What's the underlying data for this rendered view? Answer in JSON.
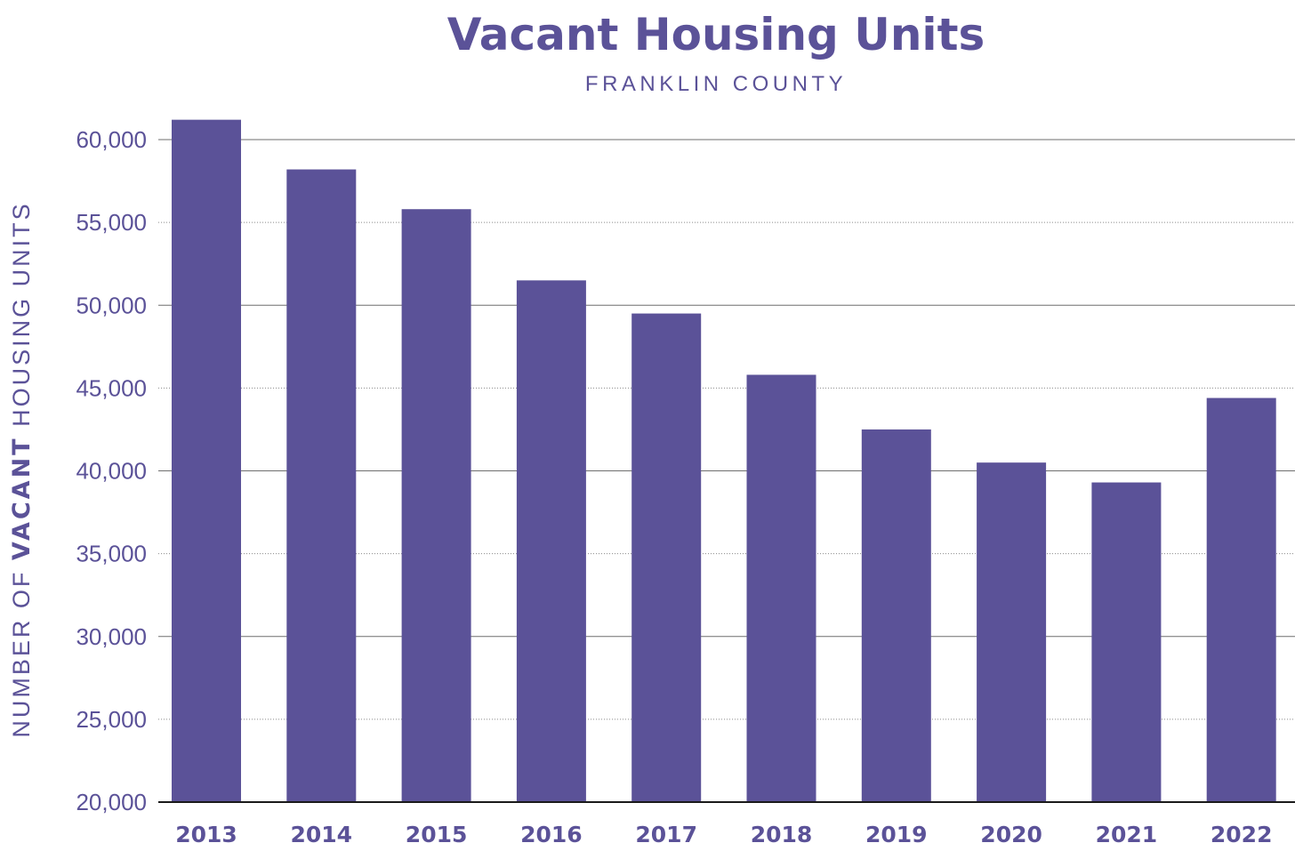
{
  "chart_data": {
    "type": "bar",
    "title": "Vacant Housing Units",
    "subtitle": "FRANKLIN COUNTY",
    "ylabel_parts": [
      "NUMBER OF ",
      "VACANT",
      " HOUSING UNITS"
    ],
    "xlabel": "",
    "categories": [
      "2013",
      "2014",
      "2015",
      "2016",
      "2017",
      "2018",
      "2019",
      "2020",
      "2021",
      "2022"
    ],
    "values": [
      61200,
      58200,
      55800,
      51500,
      49500,
      45800,
      42500,
      40500,
      39300,
      44400
    ],
    "ylim": [
      20000,
      60000
    ],
    "yticks": [
      20000,
      25000,
      30000,
      35000,
      40000,
      45000,
      50000,
      55000,
      60000
    ],
    "ytick_labels": [
      "20,000",
      "25,000",
      "30,000",
      "35,000",
      "40,000",
      "45,000",
      "50,000",
      "55,000",
      "60,000"
    ],
    "grid": true,
    "bar_color": "#5b5298",
    "text_color": "#5b5298"
  }
}
